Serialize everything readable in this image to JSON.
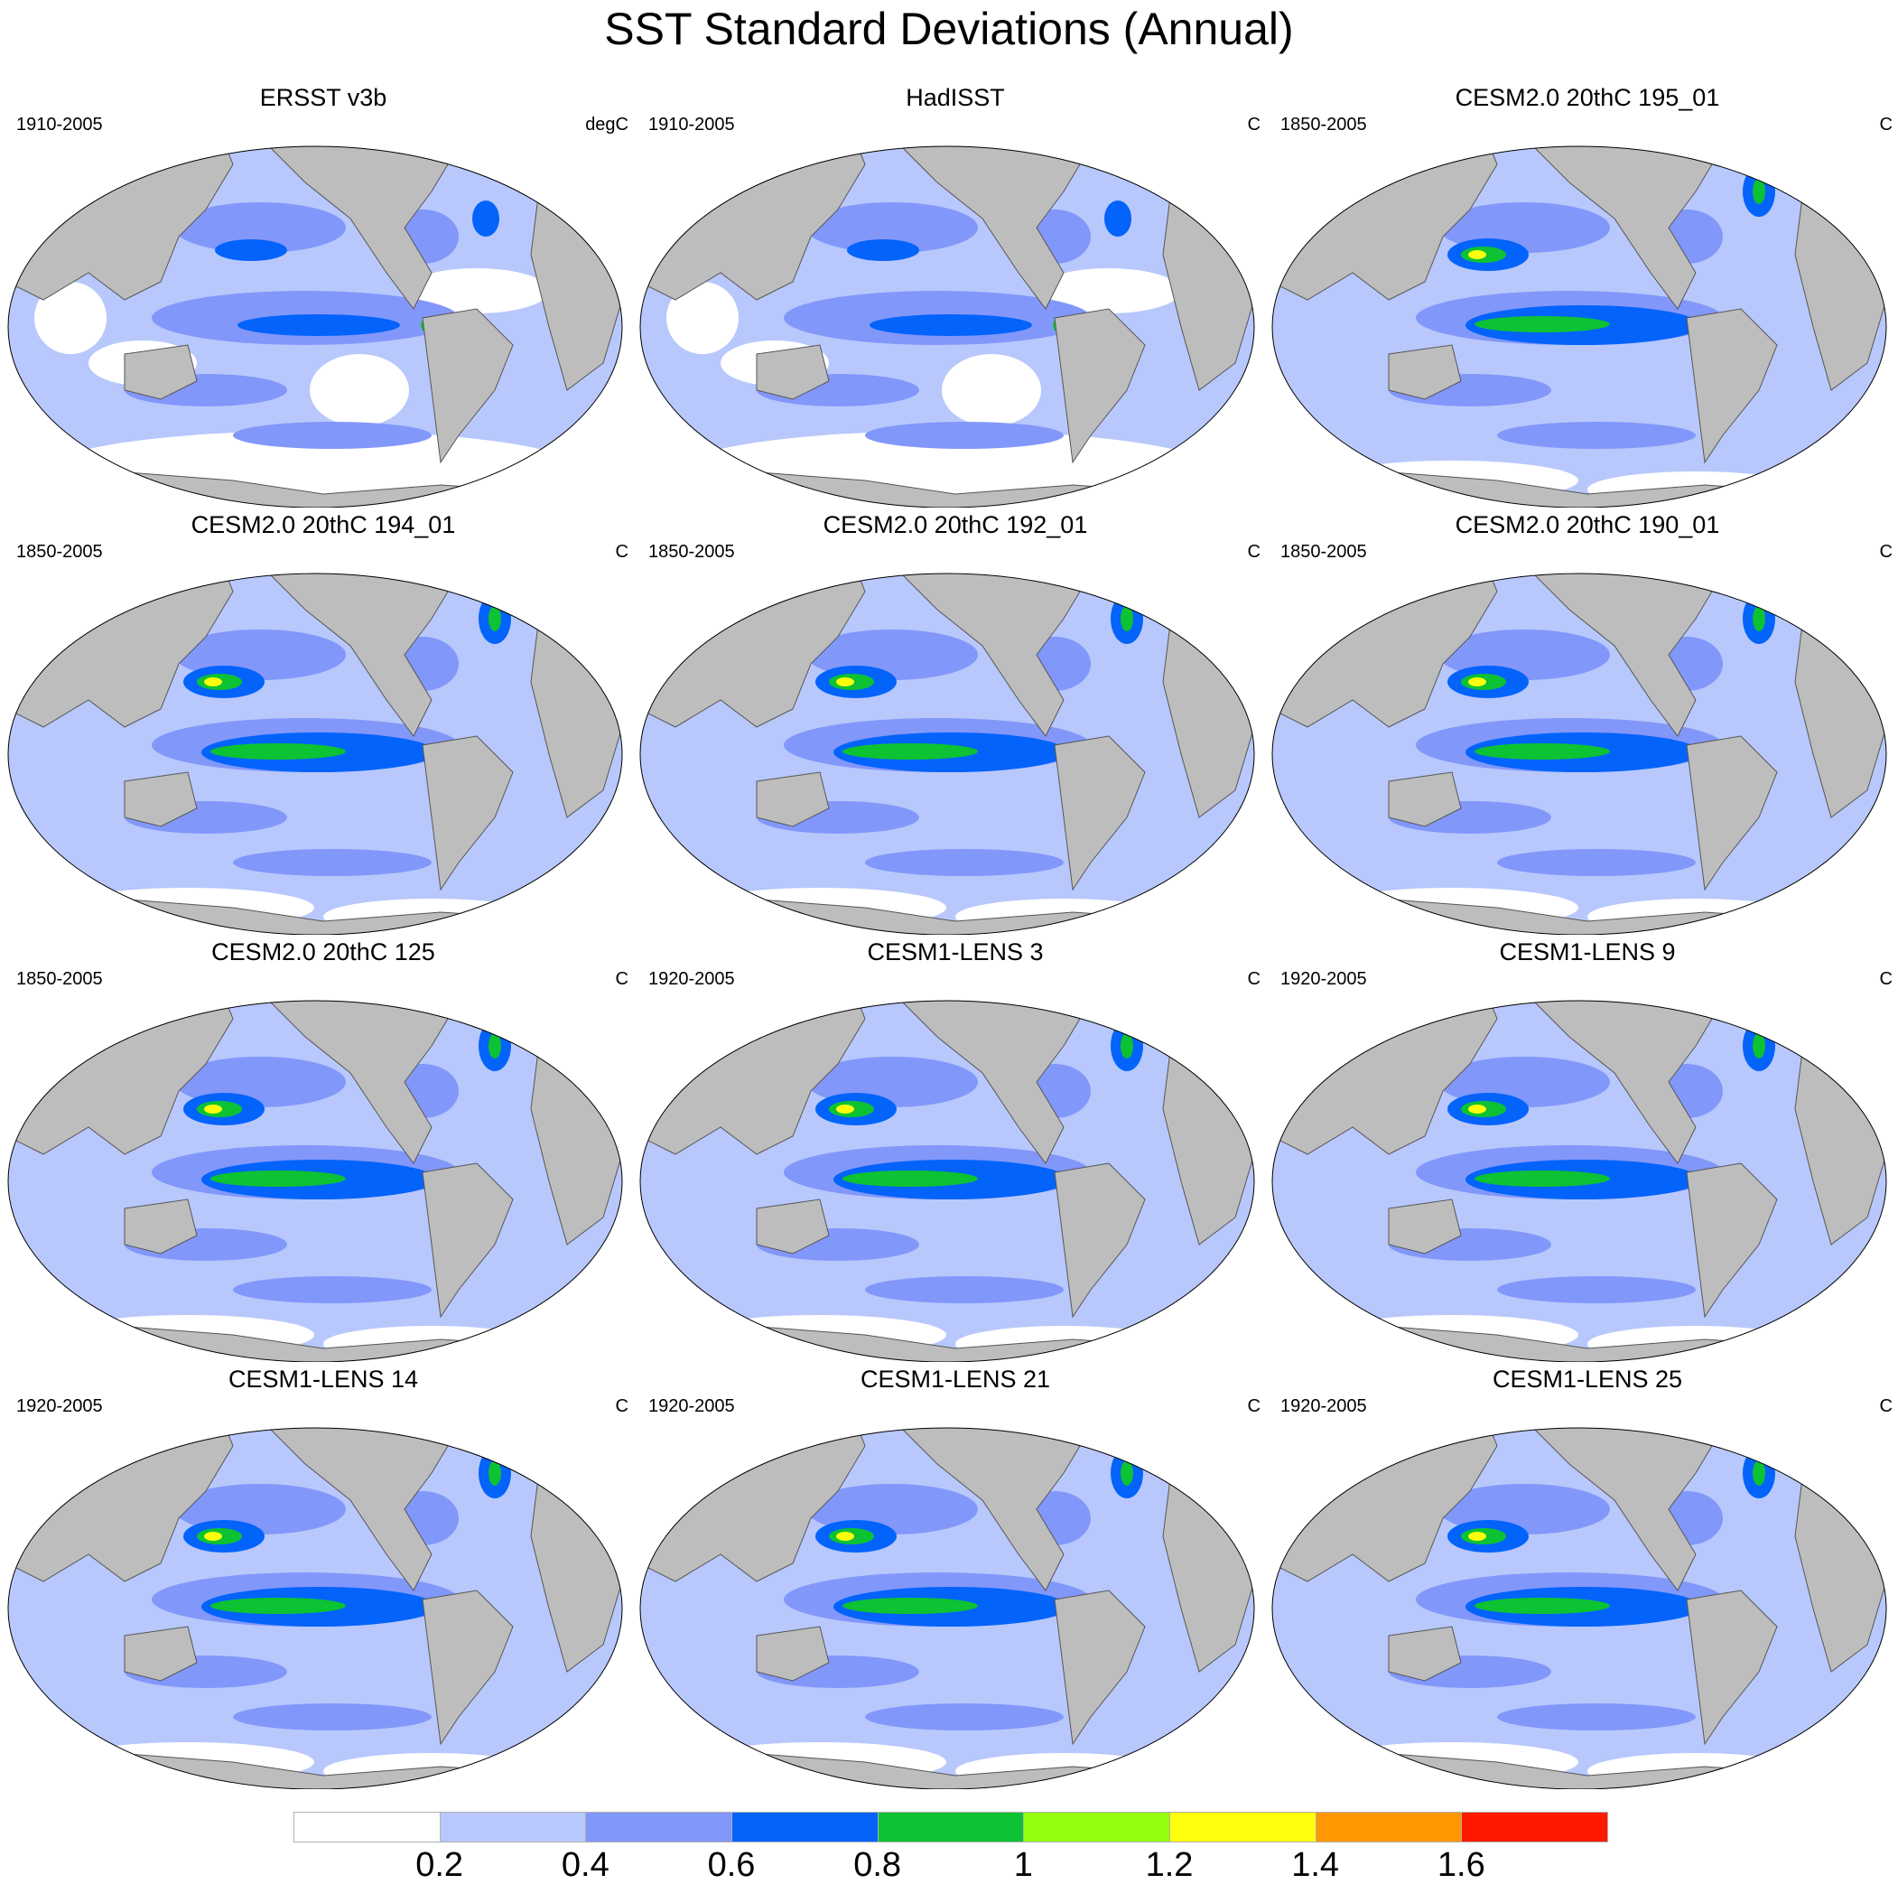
{
  "title": "SST Standard Deviations (Annual)",
  "colors": {
    "land": "#bdbdbd",
    "levels": [
      "#ffffff",
      "#b8c8fc",
      "#8297fa",
      "#0363fb",
      "#0dc233",
      "#96fe0f",
      "#fffe0b",
      "#ff9800",
      "#fe1a00"
    ]
  },
  "panels": [
    {
      "title": "ERSST v3b",
      "period": "1910-2005",
      "units": "degC"
    },
    {
      "title": "HadISST",
      "period": "1910-2005",
      "units": "C"
    },
    {
      "title": "CESM2.0 20thC 195_01",
      "period": "1850-2005",
      "units": "C"
    },
    {
      "title": "CESM2.0 20thC 194_01",
      "period": "1850-2005",
      "units": "C"
    },
    {
      "title": "CESM2.0 20thC 192_01",
      "period": "1850-2005",
      "units": "C"
    },
    {
      "title": "CESM2.0 20thC 190_01",
      "period": "1850-2005",
      "units": "C"
    },
    {
      "title": "CESM2.0 20thC 125",
      "period": "1850-2005",
      "units": "C"
    },
    {
      "title": "CESM1-LENS 3",
      "period": "1920-2005",
      "units": "C"
    },
    {
      "title": "CESM1-LENS 9",
      "period": "1920-2005",
      "units": "C"
    },
    {
      "title": "CESM1-LENS 14",
      "period": "1920-2005",
      "units": "C"
    },
    {
      "title": "CESM1-LENS 21",
      "period": "1920-2005",
      "units": "C"
    },
    {
      "title": "CESM1-LENS 25",
      "period": "1920-2005",
      "units": "C"
    }
  ],
  "colorbar": {
    "labels": [
      "0.2",
      "0.4",
      "0.6",
      "0.8",
      "1",
      "1.2",
      "1.4",
      "1.6"
    ]
  }
}
